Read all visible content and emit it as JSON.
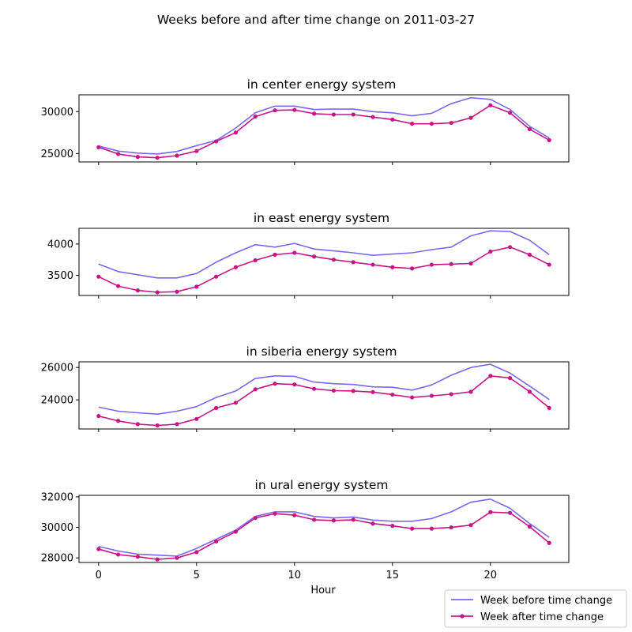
{
  "figure_title": "Weeks before and after time change on 2011-03-27",
  "colors": {
    "before": "#7b68ee",
    "after": "#c71585"
  },
  "legend": {
    "placement": "lower-right",
    "items": [
      "Week before time change",
      "Week after time change"
    ]
  },
  "chart_data": [
    {
      "type": "line",
      "title": "in center energy system",
      "xlabel": "",
      "ylabel": "",
      "xlim": [
        -1,
        24
      ],
      "ylim": [
        24000,
        32000
      ],
      "xticks": [
        0,
        5,
        10,
        15,
        20
      ],
      "yticks": [
        25000,
        30000
      ],
      "x": [
        0,
        1,
        2,
        3,
        4,
        5,
        6,
        7,
        8,
        9,
        10,
        11,
        12,
        13,
        14,
        15,
        16,
        17,
        18,
        19,
        20,
        21,
        22,
        23
      ],
      "series": [
        {
          "name": "Week before time change",
          "values": [
            25900,
            25300,
            25050,
            24950,
            25250,
            25950,
            26550,
            28050,
            29850,
            30650,
            30650,
            30250,
            30300,
            30300,
            30000,
            29850,
            29500,
            29800,
            30950,
            31650,
            31450,
            30250,
            28250,
            26850
          ]
        },
        {
          "name": "Week after time change",
          "values": [
            25750,
            24950,
            24600,
            24500,
            24750,
            25300,
            26450,
            27500,
            29400,
            30150,
            30200,
            29750,
            29650,
            29650,
            29350,
            29050,
            28550,
            28550,
            28650,
            29250,
            30750,
            29850,
            27900,
            26600
          ]
        }
      ]
    },
    {
      "type": "line",
      "title": "in east energy system",
      "xlabel": "",
      "ylabel": "",
      "xlim": [
        -1,
        24
      ],
      "ylim": [
        3180,
        4250
      ],
      "xticks": [
        0,
        5,
        10,
        15,
        20
      ],
      "yticks": [
        3500,
        4000
      ],
      "x": [
        0,
        1,
        2,
        3,
        4,
        5,
        6,
        7,
        8,
        9,
        10,
        11,
        12,
        13,
        14,
        15,
        16,
        17,
        18,
        19,
        20,
        21,
        22,
        23
      ],
      "series": [
        {
          "name": "Week before time change",
          "values": [
            3680,
            3560,
            3510,
            3460,
            3460,
            3530,
            3710,
            3860,
            3990,
            3950,
            4010,
            3920,
            3890,
            3860,
            3820,
            3840,
            3860,
            3910,
            3950,
            4130,
            4210,
            4200,
            4060,
            3830
          ]
        },
        {
          "name": "Week after time change",
          "values": [
            3480,
            3330,
            3260,
            3230,
            3240,
            3320,
            3480,
            3630,
            3740,
            3830,
            3860,
            3800,
            3750,
            3710,
            3670,
            3630,
            3610,
            3670,
            3680,
            3690,
            3880,
            3950,
            3830,
            3670
          ]
        }
      ]
    },
    {
      "type": "line",
      "title": "in siberia energy system",
      "xlabel": "",
      "ylabel": "",
      "xlim": [
        -1,
        24
      ],
      "ylim": [
        22200,
        26350
      ],
      "xticks": [
        0,
        5,
        10,
        15,
        20
      ],
      "yticks": [
        24000,
        26000
      ],
      "x": [
        0,
        1,
        2,
        3,
        4,
        5,
        6,
        7,
        8,
        9,
        10,
        11,
        12,
        13,
        14,
        15,
        16,
        17,
        18,
        19,
        20,
        21,
        22,
        23
      ],
      "series": [
        {
          "name": "Week before time change",
          "values": [
            23550,
            23300,
            23200,
            23120,
            23300,
            23580,
            24150,
            24550,
            25320,
            25480,
            25450,
            25100,
            25000,
            24950,
            24800,
            24780,
            24600,
            24920,
            25520,
            26000,
            26200,
            25650,
            24850,
            24020
          ]
        },
        {
          "name": "Week after time change",
          "values": [
            23000,
            22700,
            22500,
            22420,
            22500,
            22820,
            23500,
            23820,
            24650,
            25000,
            24950,
            24680,
            24570,
            24550,
            24480,
            24320,
            24150,
            24250,
            24350,
            24500,
            25480,
            25350,
            24500,
            23500
          ]
        }
      ]
    },
    {
      "type": "line",
      "title": "in ural energy system",
      "xlabel": "Hour",
      "ylabel": "",
      "xlim": [
        -1,
        24
      ],
      "ylim": [
        27700,
        32100
      ],
      "xticks": [
        0,
        5,
        10,
        15,
        20
      ],
      "yticks": [
        28000,
        30000,
        32000
      ],
      "x": [
        0,
        1,
        2,
        3,
        4,
        5,
        6,
        7,
        8,
        9,
        10,
        11,
        12,
        13,
        14,
        15,
        16,
        17,
        18,
        19,
        20,
        21,
        22,
        23
      ],
      "series": [
        {
          "name": "Week before time change",
          "values": [
            28750,
            28450,
            28250,
            28180,
            28120,
            28620,
            29220,
            29820,
            30720,
            31020,
            31020,
            30720,
            30620,
            30680,
            30480,
            30400,
            30400,
            30580,
            31020,
            31650,
            31850,
            31250,
            30250,
            29350
          ]
        },
        {
          "name": "Week after time change",
          "values": [
            28580,
            28220,
            28080,
            27900,
            28000,
            28380,
            29080,
            29720,
            30620,
            30900,
            30800,
            30500,
            30450,
            30500,
            30250,
            30100,
            29920,
            29920,
            30000,
            30150,
            31000,
            30950,
            30050,
            28980
          ]
        }
      ]
    }
  ]
}
